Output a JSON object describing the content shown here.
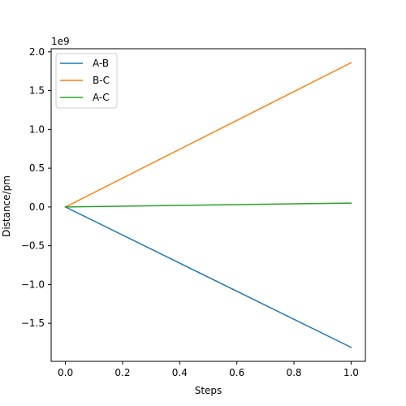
{
  "chart_data": {
    "type": "line",
    "title": "",
    "xlabel": "Steps",
    "ylabel": "Distance/pm",
    "y_scale_label": "1e9",
    "y_multiplier": 1000000000,
    "x": [
      0.0,
      1.0
    ],
    "xlim": [
      -0.05,
      1.05
    ],
    "ylim": [
      -1.99,
      2.04
    ],
    "x_ticks": [
      {
        "value": 0.0,
        "label": "0.0"
      },
      {
        "value": 0.2,
        "label": "0.2"
      },
      {
        "value": 0.4,
        "label": "0.4"
      },
      {
        "value": 0.6,
        "label": "0.6"
      },
      {
        "value": 0.8,
        "label": "0.8"
      },
      {
        "value": 1.0,
        "label": "1.0"
      }
    ],
    "y_ticks": [
      {
        "value": -1.5,
        "label": "−1.5"
      },
      {
        "value": -1.0,
        "label": "−1.0"
      },
      {
        "value": -0.5,
        "label": "−0.5"
      },
      {
        "value": 0.0,
        "label": "0.0"
      },
      {
        "value": 0.5,
        "label": "0.5"
      },
      {
        "value": 1.0,
        "label": "1.0"
      },
      {
        "value": 1.5,
        "label": "1.5"
      },
      {
        "value": 2.0,
        "label": "2.0"
      }
    ],
    "grid": false,
    "legend_position": "upper-left",
    "series": [
      {
        "name": "A-B",
        "color": "#1f77b4",
        "values": [
          0.0,
          -1.81
        ]
      },
      {
        "name": "B-C",
        "color": "#ff7f0e",
        "values": [
          0.0,
          1.86
        ]
      },
      {
        "name": "A-C",
        "color": "#2ca02c",
        "values": [
          0.0,
          0.05
        ]
      }
    ]
  }
}
